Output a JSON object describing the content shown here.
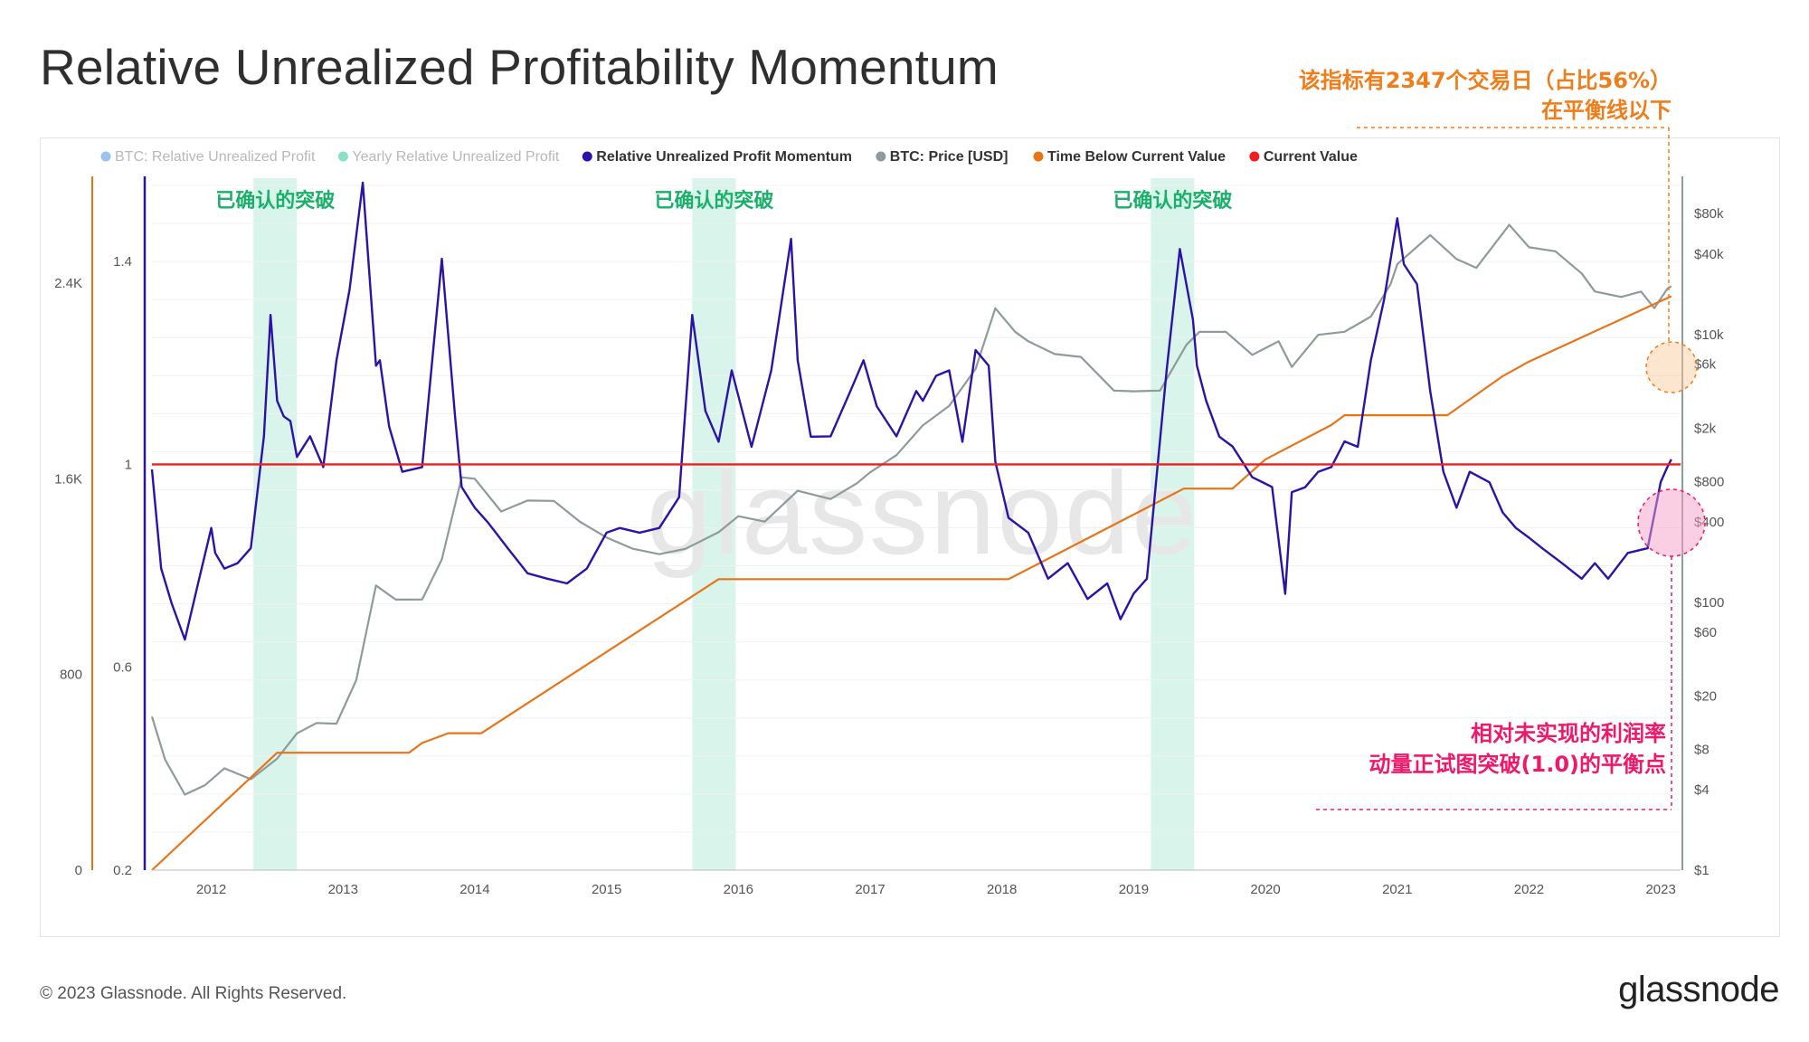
{
  "title": "Relative Unrealized Profitability Momentum",
  "footer": "© 2023 Glassnode. All Rights Reserved.",
  "brand": "glassnode",
  "watermark": "glassnode",
  "colors": {
    "momentum": "#2b12a8",
    "price": "#8e9a9b",
    "time_below": "#e87418",
    "current_value": "#f01e1e",
    "breakout_band": "#d9f5eb",
    "breakout_label": "#19b06a",
    "annotation_orange": "#f07d1a",
    "annotation_pink": "#f0186a"
  },
  "legend": [
    {
      "label": "BTC: Relative Unrealized Profit",
      "color": "#4a90e2",
      "muted": true
    },
    {
      "label": "Yearly Relative Unrealized Profit",
      "color": "#28c992",
      "muted": true
    },
    {
      "label": "Relative Unrealized Profit Momentum",
      "color": "#2b12a8",
      "muted": false
    },
    {
      "label": "BTC: Price [USD]",
      "color": "#8e9a9b",
      "muted": false
    },
    {
      "label": "Time Below Current Value",
      "color": "#e87418",
      "muted": false
    },
    {
      "label": "Current Value",
      "color": "#f01e1e",
      "muted": false
    }
  ],
  "annotations": {
    "top_right": [
      "该指标有2347个交易日（占比56%）",
      "在平衡线以下"
    ],
    "bottom_right": [
      "相对未实现的利润率",
      "动量正试图突破(1.0)的平衡点"
    ],
    "breakout_label": "已确认的突破"
  },
  "chart_data": {
    "type": "line",
    "x_axis": {
      "ticks": [
        "2012",
        "2013",
        "2014",
        "2015",
        "2016",
        "2017",
        "2018",
        "2019",
        "2020",
        "2021",
        "2022",
        "2023"
      ],
      "range": [
        2011.55,
        2023.15
      ]
    },
    "y_axes": {
      "time_below": {
        "ticks": [
          "0",
          "800",
          "1.6K",
          "2.4K"
        ],
        "range": [
          0,
          2800
        ]
      },
      "momentum": {
        "ticks": [
          "0.2",
          "0.6",
          "1",
          "1.4"
        ],
        "range": [
          0.2,
          1.55
        ]
      },
      "price": {
        "ticks": [
          "$1",
          "$4",
          "$8",
          "$20",
          "$60",
          "$100",
          "$400",
          "$800",
          "$2k",
          "$6k",
          "$10k",
          "$40k",
          "$80k"
        ],
        "scale": "log",
        "range": [
          1,
          130000
        ]
      }
    },
    "breakout_periods": [
      [
        2012.32,
        2012.65
      ],
      [
        2015.65,
        2015.98
      ],
      [
        2019.13,
        2019.46
      ]
    ],
    "current_value": 1.0,
    "series": [
      {
        "name": "Relative Unrealized Profit Momentum",
        "axis": "momentum",
        "x": [
          2011.55,
          2011.62,
          2011.7,
          2011.8,
          2011.9,
          2012.0,
          2012.03,
          2012.1,
          2012.2,
          2012.3,
          2012.4,
          2012.45,
          2012.5,
          2012.55,
          2012.6,
          2012.65,
          2012.75,
          2012.85,
          2012.95,
          2013.05,
          2013.15,
          2013.25,
          2013.28,
          2013.35,
          2013.45,
          2013.6,
          2013.75,
          2013.85,
          2013.9,
          2014.0,
          2014.1,
          2014.25,
          2014.4,
          2014.55,
          2014.7,
          2014.85,
          2015.0,
          2015.1,
          2015.25,
          2015.4,
          2015.55,
          2015.65,
          2015.75,
          2015.85,
          2015.95,
          2016.1,
          2016.25,
          2016.4,
          2016.45,
          2016.55,
          2016.7,
          2016.85,
          2016.95,
          2017.05,
          2017.2,
          2017.35,
          2017.4,
          2017.5,
          2017.6,
          2017.7,
          2017.8,
          2017.9,
          2017.95,
          2018.05,
          2018.2,
          2018.35,
          2018.5,
          2018.65,
          2018.8,
          2018.9,
          2019.0,
          2019.1,
          2019.25,
          2019.35,
          2019.45,
          2019.48,
          2019.55,
          2019.65,
          2019.75,
          2019.9,
          2020.05,
          2020.15,
          2020.2,
          2020.3,
          2020.4,
          2020.5,
          2020.6,
          2020.7,
          2020.8,
          2020.9,
          2021.0,
          2021.05,
          2021.15,
          2021.25,
          2021.35,
          2021.45,
          2021.55,
          2021.7,
          2021.8,
          2021.9,
          2022.0,
          2022.1,
          2022.25,
          2022.4,
          2022.5,
          2022.6,
          2022.75,
          2022.9,
          2023.0,
          2023.05,
          2023.08
        ],
        "y": [
          0.99,
          0.8,
          0.72,
          0.66,
          0.76,
          0.88,
          0.82,
          0.8,
          0.8,
          0.84,
          1.05,
          1.3,
          1.12,
          1.1,
          1.08,
          1.02,
          1.05,
          1.0,
          1.2,
          1.35,
          1.55,
          1.2,
          1.2,
          1.08,
          0.98,
          1.0,
          1.4,
          1.1,
          0.95,
          0.92,
          0.88,
          0.84,
          0.78,
          0.78,
          0.76,
          0.8,
          0.86,
          0.88,
          0.86,
          0.88,
          0.93,
          1.3,
          1.1,
          1.05,
          1.18,
          1.04,
          1.18,
          1.45,
          1.2,
          1.06,
          1.05,
          1.15,
          1.2,
          1.12,
          1.05,
          1.15,
          1.12,
          1.18,
          1.18,
          1.05,
          1.22,
          1.2,
          1.0,
          0.9,
          0.86,
          0.78,
          0.8,
          0.74,
          0.76,
          0.7,
          0.74,
          0.78,
          1.18,
          1.43,
          1.28,
          1.2,
          1.12,
          1.06,
          1.03,
          0.98,
          0.95,
          0.75,
          0.94,
          0.96,
          0.98,
          1.0,
          1.04,
          1.04,
          1.2,
          1.33,
          1.48,
          1.4,
          1.35,
          1.15,
          0.98,
          0.92,
          0.98,
          0.97,
          0.9,
          0.88,
          0.85,
          0.84,
          0.8,
          0.78,
          0.8,
          0.78,
          0.82,
          0.84,
          0.96,
          1.0,
          1.01
        ]
      },
      {
        "name": "BTC: Price [USD]",
        "axis": "price",
        "x": [
          2011.55,
          2011.65,
          2011.8,
          2011.95,
          2012.1,
          2012.3,
          2012.5,
          2012.65,
          2012.8,
          2012.95,
          2013.1,
          2013.25,
          2013.4,
          2013.6,
          2013.75,
          2013.9,
          2014.0,
          2014.2,
          2014.4,
          2014.6,
          2014.8,
          2015.0,
          2015.2,
          2015.4,
          2015.6,
          2015.85,
          2016.0,
          2016.2,
          2016.45,
          2016.7,
          2016.9,
          2017.0,
          2017.2,
          2017.4,
          2017.6,
          2017.8,
          2017.95,
          2018.1,
          2018.2,
          2018.4,
          2018.6,
          2018.85,
          2019.0,
          2019.2,
          2019.4,
          2019.5,
          2019.7,
          2019.9,
          2020.1,
          2020.2,
          2020.4,
          2020.6,
          2020.8,
          2020.95,
          2021.0,
          2021.25,
          2021.45,
          2021.6,
          2021.85,
          2022.0,
          2022.2,
          2022.4,
          2022.5,
          2022.7,
          2022.85,
          2022.95,
          2023.05,
          2023.08
        ],
        "y": [
          14,
          7,
          3.5,
          4.5,
          5.5,
          5,
          6.5,
          11,
          12,
          13,
          25,
          140,
          100,
          110,
          200,
          900,
          800,
          500,
          550,
          600,
          380,
          320,
          240,
          240,
          240,
          350,
          420,
          420,
          650,
          620,
          740,
          980,
          1200,
          2200,
          2800,
          5800,
          15000,
          11000,
          8500,
          7500,
          6500,
          4000,
          3600,
          4000,
          8000,
          11000,
          10000,
          7400,
          8500,
          6000,
          9500,
          11000,
          13000,
          25000,
          32000,
          58000,
          35000,
          33000,
          63000,
          47000,
          40000,
          30000,
          20000,
          20000,
          20000,
          16500,
          21000,
          23000
        ]
      },
      {
        "name": "Time Below Current Value",
        "axis": "time_below",
        "x": [
          2011.55,
          2012.5,
          2012.85,
          2013.5,
          2013.6,
          2013.8,
          2014.05,
          2015.85,
          2018.05,
          2019.38,
          2019.72,
          2019.75,
          2020.0,
          2020.5,
          2020.6,
          2021.0,
          2021.38,
          2021.8,
          2022.0,
          2023.08
        ],
        "y": [
          0,
          480,
          480,
          480,
          520,
          560,
          560,
          1190,
          1190,
          1560,
          1560,
          1560,
          1680,
          1820,
          1860,
          1860,
          1860,
          2020,
          2080,
          2347
        ]
      }
    ]
  }
}
